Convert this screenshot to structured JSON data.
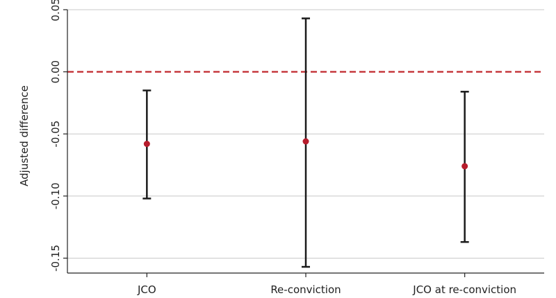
{
  "chart_data": {
    "type": "errorbar",
    "title": "",
    "xlabel": "",
    "ylabel": "Adjusted difference",
    "ylim": [
      -0.162,
      0.05
    ],
    "yticks": [
      0.05,
      0.0,
      -0.05,
      -0.1,
      -0.15
    ],
    "ytick_labels": [
      "0.05",
      "0.00",
      "-0.05",
      "-0.10",
      "-0.15"
    ],
    "grid": true,
    "reference_line": {
      "y": 0.0,
      "style": "dashed",
      "color": "#c0262b"
    },
    "categories": [
      "JCO",
      "Re-conviction",
      "JCO at re-conviction"
    ],
    "estimates": [
      -0.058,
      -0.056,
      -0.076
    ],
    "lower": [
      -0.102,
      -0.157,
      -0.137
    ],
    "upper": [
      -0.015,
      0.043,
      -0.016
    ],
    "colors": {
      "point": "#b71c2c",
      "errorbar": "#1a1a1a",
      "grid": "#c8c8c8",
      "axis": "#222222"
    }
  }
}
